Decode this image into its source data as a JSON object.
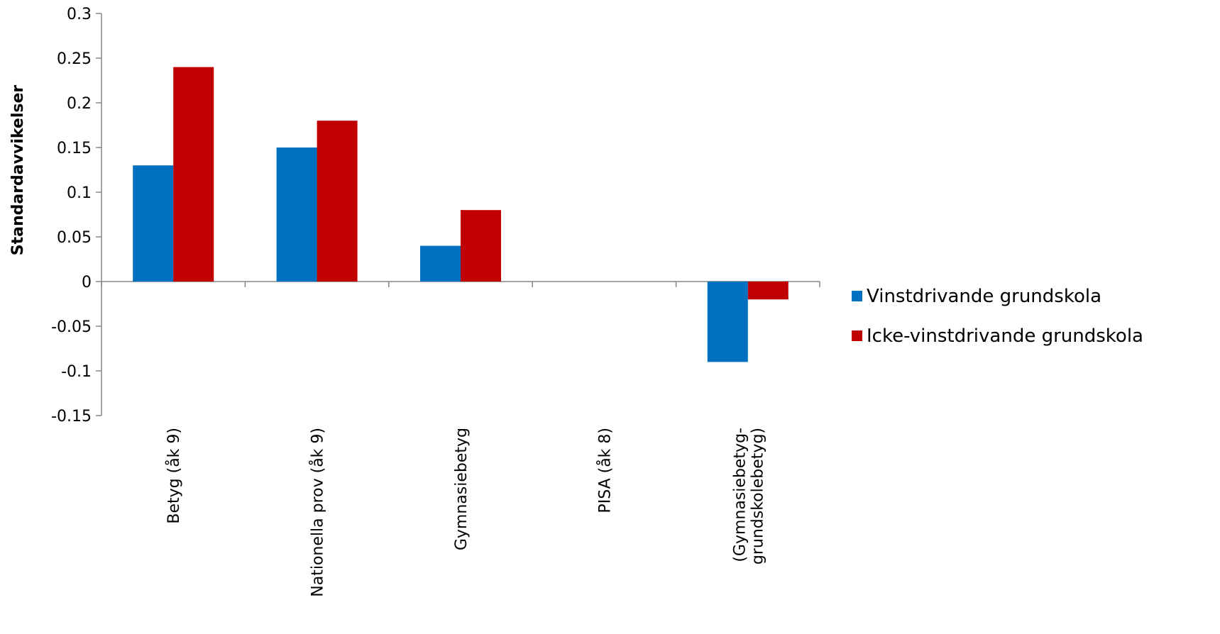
{
  "chart_data": {
    "type": "bar",
    "title": "",
    "xlabel": "",
    "ylabel": "Standardavvikelser",
    "ylim": [
      -0.15,
      0.3
    ],
    "yticks": [
      "0.3",
      "0.25",
      "0.2",
      "0.15",
      "0.1",
      "0.05",
      "0",
      "-0.05",
      "-0.1",
      "-0.15"
    ],
    "categories": [
      [
        "Betyg (åk 9)"
      ],
      [
        "Nationella prov (åk 9)"
      ],
      [
        "Gymnasiebetyg"
      ],
      [
        "PISA (åk 8)"
      ],
      [
        "(Gymnasiebetyg-",
        "grundskolebetyg)"
      ]
    ],
    "series": [
      {
        "name": "Vinstdrivande grundskola",
        "color": "#0070C0",
        "values": [
          0.13,
          0.15,
          0.04,
          0,
          -0.09
        ]
      },
      {
        "name": "Icke-vinstdrivande grundskola",
        "color": "#C00000",
        "values": [
          0.24,
          0.18,
          0.08,
          0,
          -0.02
        ]
      }
    ],
    "grid": false,
    "legend_position": "right"
  }
}
